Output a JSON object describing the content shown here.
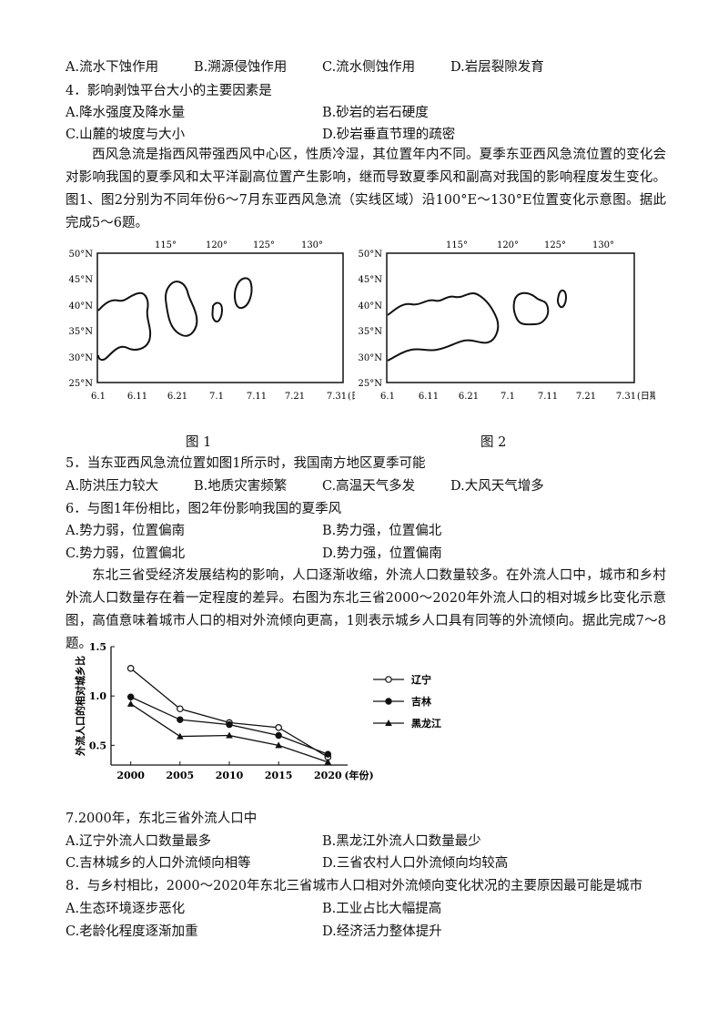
{
  "q3_options": [
    "A.流水下蚀作用",
    "B.溯源侵蚀作用",
    "C.流水侧蚀作用",
    "D.岩层裂隙发育"
  ],
  "q4": {
    "stem": "4．影响剥蚀平台大小的主要因素是",
    "options": [
      "A.降水强度及降水量",
      "B.砂岩的岩石硬度",
      "C.山麓的坡度与大小",
      "D.砂岩垂直节理的疏密"
    ]
  },
  "passage1": "西风急流是指西风带强西风中心区，性质冷湿，其位置年内不同。夏季东亚西风急流位置的变化会对影响我国的夏季风和太平洋副高位置产生影响，继而导致夏季风和副高对我国的影响程度发生变化。图1、图2分别为不同年份6～7月东亚西风急流（实线区域）沿100°E～130°E位置变化示意图。据此完成5～6题。",
  "figure1": {
    "caption": "图 1",
    "top_ticks": [
      "115°",
      "120°",
      "125°",
      "130°"
    ],
    "left_ticks": [
      "50°N",
      "45°N",
      "40°N",
      "35°N",
      "30°N",
      "25°N"
    ],
    "bottom_ticks": [
      "6.1",
      "6.11",
      "6.21",
      "7.1",
      "7.11",
      "7.21",
      "7.31"
    ],
    "bottom_unit": "(日期)"
  },
  "figure2": {
    "caption": "图 2",
    "top_ticks": [
      "115°",
      "120°",
      "125°",
      "130°"
    ],
    "left_ticks": [
      "50°N",
      "45°N",
      "40°N",
      "35°N",
      "30°N",
      "25°N"
    ],
    "bottom_ticks": [
      "6.1",
      "6.11",
      "6.21",
      "7.1",
      "7.11",
      "7.21",
      "7.31"
    ],
    "bottom_unit": "(日期)"
  },
  "q5": {
    "stem": "5．当东亚西风急流位置如图1所示时，我国南方地区夏季可能",
    "options": [
      "A.防洪压力较大",
      "B.地质灾害频繁",
      "C.高温天气多发",
      "D.大风天气增多"
    ]
  },
  "q6": {
    "stem": "6．与图1年份相比，图2年份影响我国的夏季风",
    "options": [
      "A.势力弱，位置偏南",
      "B.势力强，位置偏北",
      "C.势力弱，位置偏北",
      "D.势力强，位置偏南"
    ]
  },
  "passage2": "东北三省受经济发展结构的影响，人口逐渐收缩，外流人口数量较多。在外流人口中，城市和乡村外流人口数量存在着一定程度的差异。右图为东北三省2000～2020年外流人口的相对城乡比变化示意图，高值意味着城市人口的相对外流倾向更高，1则表示城乡人口具有同等的外流倾向。据此完成7～8题。",
  "chart_data": {
    "type": "line",
    "x": [
      2000,
      2005,
      2010,
      2015,
      2020
    ],
    "x_tick_labels": [
      "2000",
      "2005",
      "2010",
      "2015",
      "2020"
    ],
    "xlabel": "(年份)",
    "ylabel": "外流人口的相对城乡比",
    "y_tick_labels": [
      "0.5",
      "1.0",
      "1.5"
    ],
    "ylim": [
      0.3,
      1.5
    ],
    "legend_position": "right",
    "series": [
      {
        "name": "辽宁",
        "marker": "open-circle",
        "values": [
          1.28,
          0.87,
          0.73,
          0.68,
          0.38
        ]
      },
      {
        "name": "吉林",
        "marker": "filled-circle",
        "values": [
          0.99,
          0.76,
          0.71,
          0.6,
          0.41
        ]
      },
      {
        "name": "黑龙江",
        "marker": "triangle",
        "values": [
          0.92,
          0.59,
          0.6,
          0.5,
          0.33
        ]
      }
    ]
  },
  "q7": {
    "stem": "7.2000年，东北三省外流人口中",
    "options": [
      "A.辽宁外流人口数量最多",
      "B.黑龙江外流人口数量最少",
      "C.吉林城乡的人口外流倾向相等",
      "D.三省农村人口外流倾向均较高"
    ]
  },
  "q8": {
    "stem": "8．与乡村相比，2000～2020年东北三省城市人口相对外流倾向变化状况的主要原因最可能是城市",
    "options": [
      "A.生态环境逐步恶化",
      "B.工业占比大幅提高",
      "C.老龄化程度逐渐加重",
      "D.经济活力整体提升"
    ]
  }
}
